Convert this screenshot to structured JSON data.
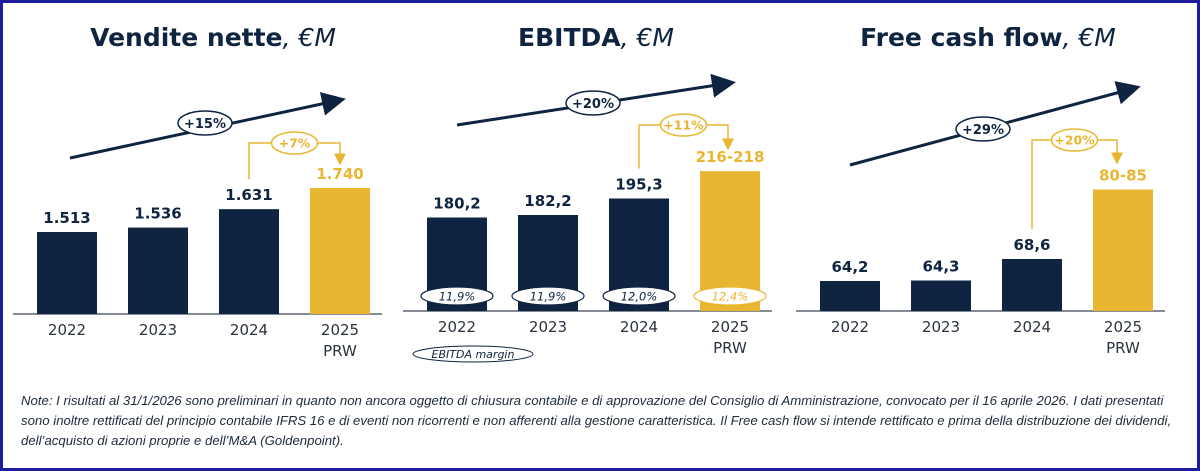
{
  "colors": {
    "navy": "#0f2440",
    "gold": "#e8b631",
    "border": "#1c1c9c"
  },
  "chart_data": [
    {
      "type": "bar",
      "title": "Vendite nette",
      "unit": ", €M",
      "categories": [
        "2022",
        "2023",
        "2024",
        "2025\nPRW"
      ],
      "values": [
        1513,
        1536,
        1631,
        1740
      ],
      "labels": [
        "1.513",
        "1.536",
        "1.631",
        "1.740"
      ],
      "highlight_last": true,
      "growth_overall": "+15%",
      "growth_last": "+7%"
    },
    {
      "type": "bar",
      "title": "EBITDA",
      "unit": ", €M",
      "categories": [
        "2022",
        "2023",
        "2024",
        "2025\nPRW"
      ],
      "values": [
        180.2,
        182.2,
        195.3,
        217
      ],
      "labels": [
        "180,2",
        "182,2",
        "195,3",
        "216-218"
      ],
      "margins": [
        "11,9%",
        "11,9%",
        "12,0%",
        "12,4%"
      ],
      "margin_legend": "EBITDA margin",
      "highlight_last": true,
      "growth_overall": "+20%",
      "growth_last": "+11%"
    },
    {
      "type": "bar",
      "title": "Free cash flow",
      "unit": ", €M",
      "categories": [
        "2022",
        "2023",
        "2024",
        "2025\nPRW"
      ],
      "values": [
        64.2,
        64.3,
        68.6,
        82.5
      ],
      "labels": [
        "64,2",
        "64,3",
        "68,6",
        "80-85"
      ],
      "highlight_last": true,
      "growth_overall": "+29%",
      "growth_last": "+20%"
    }
  ],
  "note": "Note: I risultati al 31/1/2026  sono preliminari in quanto non ancora oggetto di chiusura contabile e di approvazione del Consiglio di Amministrazione, convocato per il 16 aprile 2026. I dati presentati sono inoltre rettificati del principio contabile IFRS 16 e di  eventi non ricorrenti e non afferenti alla gestione caratteristica. Il Free cash flow si intende rettificato e prima della distribuzione dei dividendi, dell’acquisto di azioni proprie e dell’M&A (Goldenpoint)."
}
